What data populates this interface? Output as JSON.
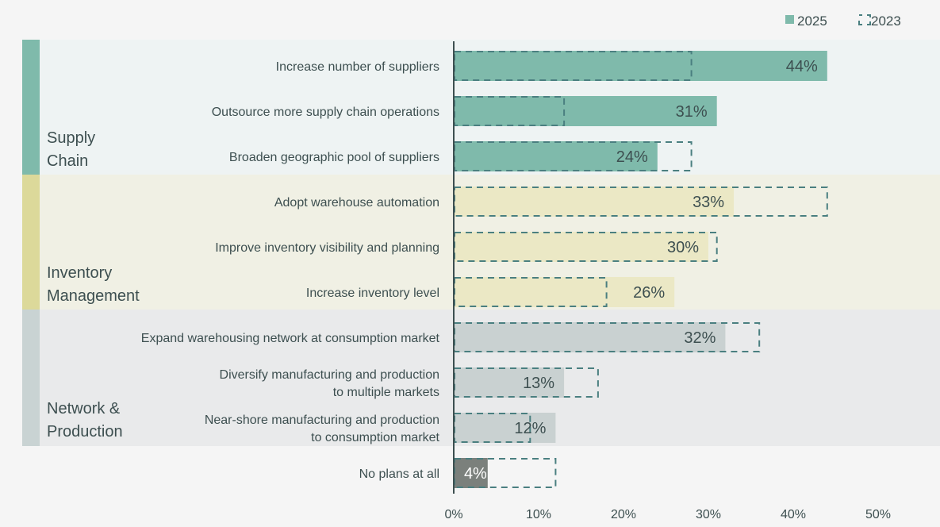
{
  "chart_data": {
    "type": "bar",
    "orientation": "horizontal",
    "legend": {
      "position": "top-right",
      "items": [
        {
          "name": "2025",
          "style": "solid",
          "color": "#7fbaab"
        },
        {
          "name": "2023",
          "style": "dashed-outline",
          "color": "#4a7f80"
        }
      ]
    },
    "groups": [
      {
        "label": "Supply Chain",
        "label_lines": [
          "Supply",
          "Chain"
        ],
        "stripe_color": "#7fbaab",
        "bg_color": "#eef3f3",
        "bar_color": "#7fbaab",
        "categories": [
          {
            "label_lines": [
              "Increase number of suppliers"
            ],
            "v2025": 44,
            "v2023": 28,
            "data_label": "44%"
          },
          {
            "label_lines": [
              "Outsource more supply chain operations"
            ],
            "v2025": 31,
            "v2023": 13,
            "data_label": "31%"
          },
          {
            "label_lines": [
              "Broaden geographic pool of suppliers"
            ],
            "v2025": 24,
            "v2023": 28,
            "data_label": "24%"
          }
        ]
      },
      {
        "label": "Inventory Management",
        "label_lines": [
          "Inventory",
          "Management"
        ],
        "stripe_color": "#dcd99a",
        "bg_color": "#f0f0e4",
        "bar_color": "#ebe8c5",
        "categories": [
          {
            "label_lines": [
              "Adopt warehouse automation"
            ],
            "v2025": 33,
            "v2023": 44,
            "data_label": "33%"
          },
          {
            "label_lines": [
              "Improve inventory visibility and planning"
            ],
            "v2025": 30,
            "v2023": 31,
            "data_label": "30%"
          },
          {
            "label_lines": [
              "Increase inventory level"
            ],
            "v2025": 26,
            "v2023": 18,
            "data_label": "26%"
          }
        ]
      },
      {
        "label": "Network & Production",
        "label_lines": [
          "Network &",
          "Production"
        ],
        "stripe_color": "#c9d3d3",
        "bg_color": "#e9eaeb",
        "bar_color": "#c9d1d1",
        "categories": [
          {
            "label_lines": [
              "Expand warehousing network at consumption market"
            ],
            "v2025": 32,
            "v2023": 36,
            "data_label": "32%"
          },
          {
            "label_lines": [
              "Diversify manufacturing and production",
              "to multiple markets"
            ],
            "v2025": 13,
            "v2023": 17,
            "data_label": "13%"
          },
          {
            "label_lines": [
              "Near-shore manufacturing and production",
              "to consumption market"
            ],
            "v2025": 12,
            "v2023": 9,
            "data_label": "12%"
          }
        ]
      },
      {
        "label": "",
        "label_lines": [],
        "stripe_color": "",
        "bg_color": "",
        "bar_color": "#7b807c",
        "categories": [
          {
            "label_lines": [
              "No plans at all"
            ],
            "v2025": 4,
            "v2023": 12,
            "data_label": "4%"
          }
        ]
      }
    ],
    "xlim": [
      0,
      50
    ],
    "x_ticks": [
      "0%",
      "10%",
      "20%",
      "30%",
      "40%",
      "50%"
    ],
    "x_tick_values": [
      0,
      10,
      20,
      30,
      40,
      50
    ],
    "grid": false
  }
}
